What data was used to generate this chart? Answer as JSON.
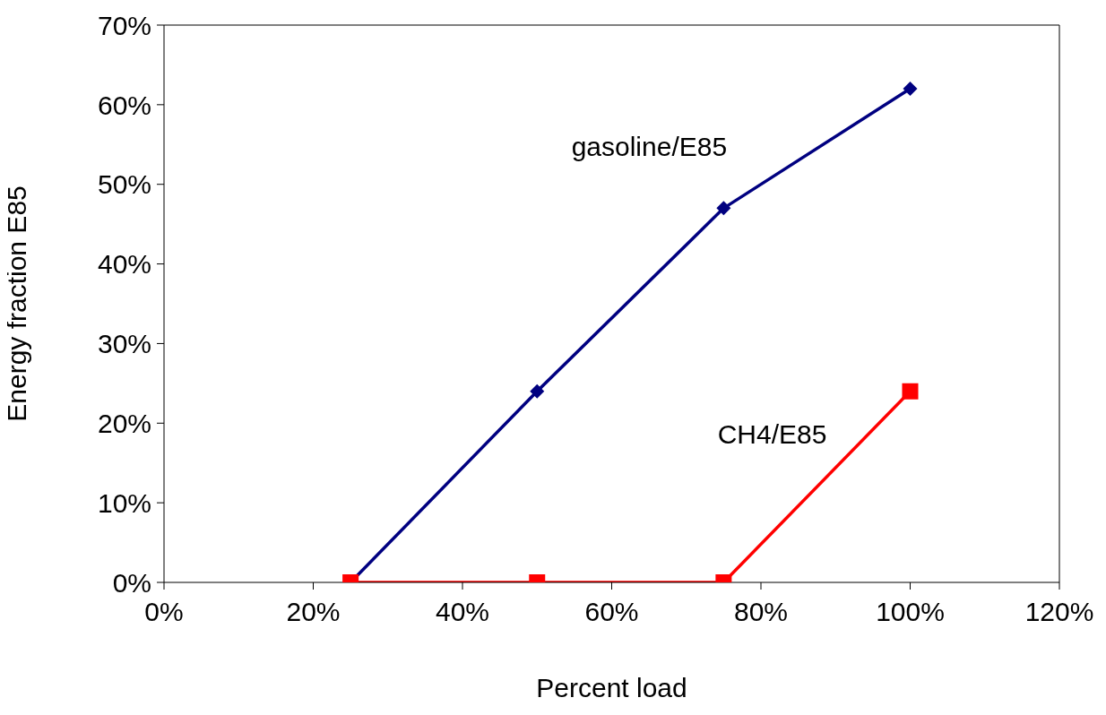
{
  "chart_data": {
    "type": "line",
    "xlabel": "Percent load",
    "ylabel": "Energy fraction E85",
    "x": [
      25,
      50,
      75,
      100
    ],
    "series": [
      {
        "name": "gasoline/E85",
        "color": "#000080",
        "marker": "diamond",
        "values": [
          0,
          24,
          47,
          62
        ]
      },
      {
        "name": "CH4/E85",
        "color": "#ff0000",
        "marker": "square",
        "values": [
          0,
          0,
          0,
          24
        ]
      }
    ],
    "xlim": [
      0,
      120
    ],
    "xticks": [
      {
        "value": 0,
        "label": "0%"
      },
      {
        "value": 20,
        "label": "20%"
      },
      {
        "value": 40,
        "label": "40%"
      },
      {
        "value": 60,
        "label": "60%"
      },
      {
        "value": 80,
        "label": "80%"
      },
      {
        "value": 100,
        "label": "100%"
      },
      {
        "value": 120,
        "label": "120%"
      }
    ],
    "ylim": [
      0,
      70
    ],
    "yticks": [
      {
        "value": 0,
        "label": "0%"
      },
      {
        "value": 10,
        "label": "10%"
      },
      {
        "value": 20,
        "label": "20%"
      },
      {
        "value": 30,
        "label": "30%"
      },
      {
        "value": 40,
        "label": "40%"
      },
      {
        "value": 50,
        "label": "50%"
      },
      {
        "value": 60,
        "label": "60%"
      },
      {
        "value": 70,
        "label": "70%"
      }
    ],
    "grid": false,
    "legend": false,
    "line_style": "solid"
  }
}
